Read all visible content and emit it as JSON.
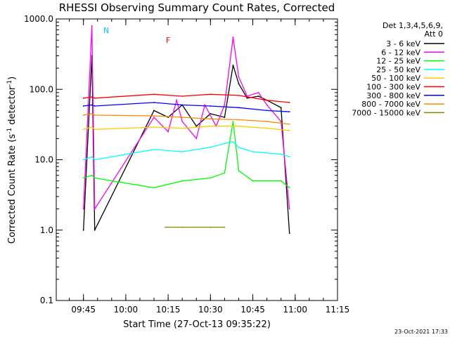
{
  "chart_data": {
    "type": "line",
    "title": "RHESSI Observing Summary Count Rates, Corrected",
    "xlabel": "Start Time (27-Oct-13 09:35:22)",
    "ylabel": "Corrected Count Rate (s",
    "ylabel_sup": "-1",
    "ylabel_tail": " detector",
    "ylabel_sup2": "-1",
    "ylabel_end": ")",
    "y_scale": "log",
    "ylim": [
      0.1,
      1000
    ],
    "xlim": [
      "09:35:22",
      "11:15:00"
    ],
    "x_ticks": [
      "09:45",
      "10:00",
      "10:15",
      "10:30",
      "10:45",
      "11:00",
      "11:15"
    ],
    "y_ticks": [
      "0.1",
      "1.0",
      "10.0",
      "100.0",
      "1000.0"
    ],
    "legend_header": [
      "Det 1,3,4,5,6,9,",
      "Att 0"
    ],
    "legend_position": "right",
    "timestamp": "23-Oct-2021 17:33",
    "flag_labels": [
      {
        "text": "F",
        "color": "#ff0000"
      },
      {
        "text": "N",
        "color": "#00c8ff"
      }
    ],
    "series": [
      {
        "name": "3 - 6 keV",
        "color": "#000000",
        "x": [
          "09:45",
          "09:48",
          "09:49",
          "10:10",
          "10:15",
          "10:20",
          "10:25",
          "10:30",
          "10:35",
          "10:38",
          "10:40",
          "10:43",
          "10:47",
          "10:50",
          "10:55",
          "10:58"
        ],
        "y": [
          1.0,
          300,
          1.0,
          50,
          40,
          60,
          30,
          45,
          40,
          220,
          120,
          75,
          80,
          70,
          55,
          0.9
        ]
      },
      {
        "name": "6 - 12 keV",
        "color": "#ff00ff",
        "x": [
          "09:45",
          "09:48",
          "09:49",
          "10:10",
          "10:15",
          "10:18",
          "10:20",
          "10:25",
          "10:28",
          "10:32",
          "10:35",
          "10:38",
          "10:40",
          "10:43",
          "10:47",
          "10:50",
          "10:55",
          "10:58"
        ],
        "y": [
          2.0,
          800,
          2.0,
          40,
          25,
          70,
          35,
          20,
          60,
          30,
          60,
          550,
          150,
          80,
          90,
          60,
          35,
          2.0
        ]
      },
      {
        "name": "12 - 25 keV",
        "color": "#00ff00",
        "x": [
          "09:45",
          "09:48",
          "09:49",
          "10:10",
          "10:20",
          "10:30",
          "10:35",
          "10:38",
          "10:40",
          "10:45",
          "10:55",
          "10:58"
        ],
        "y": [
          5.5,
          6,
          5.5,
          4,
          5,
          5.5,
          6.5,
          35,
          7,
          5,
          5,
          4
        ]
      },
      {
        "name": "25 - 50 keV",
        "color": "#00ffff",
        "x": [
          "09:45",
          "09:48",
          "09:49",
          "10:10",
          "10:20",
          "10:30",
          "10:35",
          "10:38",
          "10:40",
          "10:45",
          "10:55",
          "10:58"
        ],
        "y": [
          10,
          11,
          10,
          14,
          13,
          15,
          17,
          18,
          15,
          13,
          12,
          11
        ]
      },
      {
        "name": "50 - 100 keV",
        "color": "#ffcc00",
        "x": [
          "09:45",
          "09:48",
          "09:49",
          "10:10",
          "10:20",
          "10:30",
          "10:40",
          "10:50",
          "10:58"
        ],
        "y": [
          27,
          29,
          27,
          29,
          28,
          30,
          30,
          28,
          26
        ]
      },
      {
        "name": "100 - 300 keV",
        "color": "#ff0000",
        "x": [
          "09:45",
          "09:48",
          "09:49",
          "10:10",
          "10:20",
          "10:30",
          "10:40",
          "10:50",
          "10:58"
        ],
        "y": [
          75,
          78,
          75,
          85,
          80,
          85,
          82,
          70,
          65
        ]
      },
      {
        "name": "300 - 800 keV",
        "color": "#0000ff",
        "x": [
          "09:45",
          "09:48",
          "09:49",
          "10:10",
          "10:20",
          "10:30",
          "10:40",
          "10:50",
          "10:58"
        ],
        "y": [
          58,
          60,
          58,
          65,
          60,
          58,
          55,
          50,
          48
        ]
      },
      {
        "name": "800 - 7000 keV",
        "color": "#ff8800",
        "x": [
          "09:45",
          "09:48",
          "09:49",
          "10:10",
          "10:20",
          "10:30",
          "10:40",
          "10:50",
          "10:58"
        ],
        "y": [
          43,
          45,
          43,
          42,
          40,
          38,
          37,
          35,
          32
        ]
      },
      {
        "name": "7000 - 15000 keV",
        "color": "#888800",
        "x": [
          "10:14",
          "10:20",
          "10:30",
          "10:35"
        ],
        "y": [
          1.1,
          1.1,
          1.1,
          1.1
        ]
      }
    ]
  }
}
